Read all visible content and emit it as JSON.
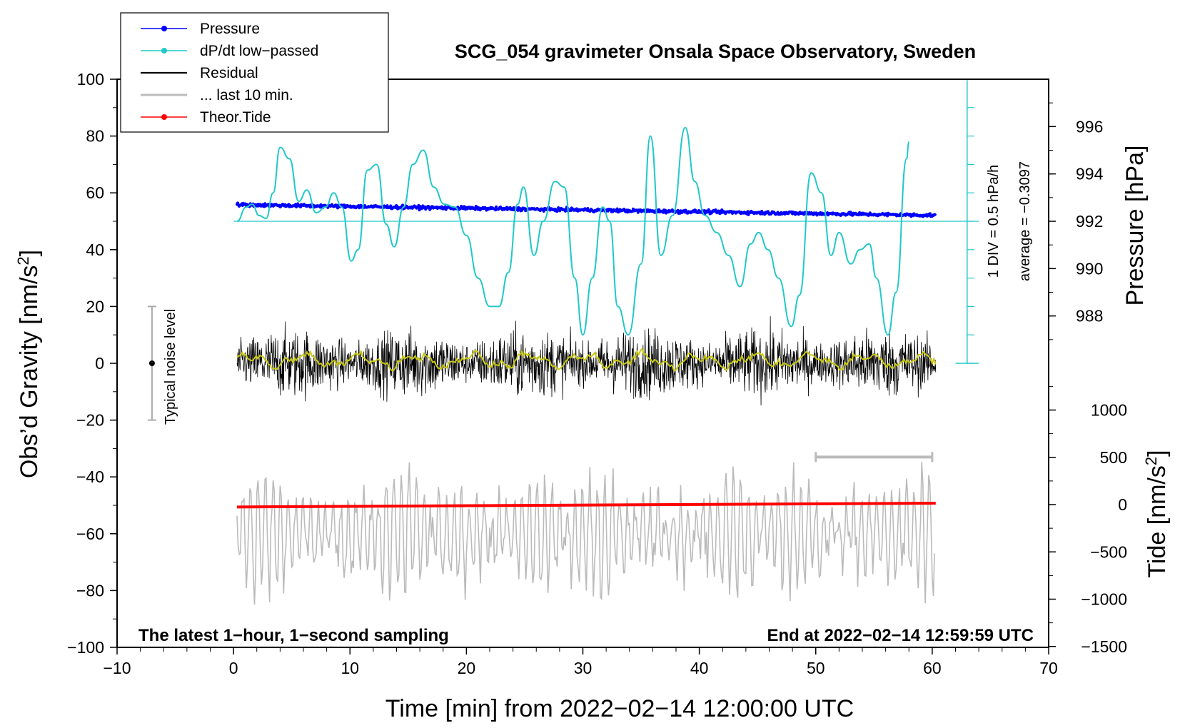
{
  "chart_data": {
    "type": "line",
    "title": "SCG_054 gravimeter Onsala Space Observatory, Sweden",
    "xlabel": "Time [min] from 2022−02−14 12:00:00 UTC",
    "ylabel_left": "Obs’d Gravity [nm/s",
    "ylabel_left_sup": "2",
    "ylabel_left_end": "]",
    "ylabel_right_top": "Pressure [hPa]",
    "ylabel_right_bottom": "Tide [nm/s",
    "ylabel_right_bottom_sup": "2",
    "ylabel_right_bottom_end": "]",
    "xlim": [
      -10,
      70
    ],
    "ylim": [
      -100,
      100
    ],
    "x_ticks": [
      {
        "v": -10,
        "t": "−10"
      },
      {
        "v": 0,
        "t": "0"
      },
      {
        "v": 10,
        "t": "10"
      },
      {
        "v": 20,
        "t": "20"
      },
      {
        "v": 30,
        "t": "30"
      },
      {
        "v": 40,
        "t": "40"
      },
      {
        "v": 50,
        "t": "50"
      },
      {
        "v": 60,
        "t": "60"
      },
      {
        "v": 70,
        "t": "70"
      }
    ],
    "y_ticks": [
      {
        "v": 100,
        "t": "100"
      },
      {
        "v": 80,
        "t": "80"
      },
      {
        "v": 60,
        "t": "60"
      },
      {
        "v": 40,
        "t": "40"
      },
      {
        "v": 20,
        "t": "20"
      },
      {
        "v": 0,
        "t": "0"
      },
      {
        "v": -20,
        "t": "−20"
      },
      {
        "v": -40,
        "t": "−40"
      },
      {
        "v": -60,
        "t": "−60"
      },
      {
        "v": -80,
        "t": "−80"
      },
      {
        "v": -100,
        "t": "−100"
      }
    ],
    "pressure_axis": {
      "ticks": [
        {
          "v": 996,
          "t": "996"
        },
        {
          "v": 994,
          "t": "994"
        },
        {
          "v": 992,
          "t": "992"
        },
        {
          "v": 990,
          "t": "990"
        },
        {
          "v": 988,
          "t": "988"
        }
      ],
      "note": "hPa scale maps 992 hPa to gravity 50, 2 hPa per 16.67 units"
    },
    "tide_axis": {
      "ticks": [
        {
          "v": 1000,
          "t": "1000"
        },
        {
          "v": 500,
          "t": "500"
        },
        {
          "v": 0,
          "t": "0"
        },
        {
          "v": -500,
          "t": "−500"
        },
        {
          "v": -1000,
          "t": "−1000"
        },
        {
          "v": -1500,
          "t": "−1500"
        }
      ]
    },
    "dpdt_scale_label": "1 DIV = 0.5 hPa/h",
    "average_label": "average = −0.3097",
    "typical_noise_label": "Typical noise level",
    "bottom_left_note": "The latest 1−hour, 1−second sampling",
    "bottom_right_note": "End at 2022−02−14 12:59:59 UTC",
    "legend": [
      {
        "label": "Pressure",
        "color": "#0000ff",
        "marker": true
      },
      {
        "label": "dP/dt low−passed",
        "color": "#22c8c8",
        "marker": true
      },
      {
        "label": "Residual",
        "color": "#000000",
        "marker": false
      },
      {
        "label": "... last 10 min.",
        "color": "#bbbbbb",
        "marker": false
      },
      {
        "label": "Theor.Tide",
        "color": "#ff0000",
        "marker": true
      }
    ],
    "series": [
      {
        "name": "Pressure",
        "color": "#0000ff",
        "unit": "hPa",
        "start": 992.7,
        "end": 992.25,
        "x_range": [
          0.3,
          60.3
        ]
      },
      {
        "name": "dP/dt low−passed",
        "color": "#22c8c8",
        "x": [
          0.3,
          1.1,
          1.6,
          2.2,
          2.8,
          3.4,
          4.0,
          4.8,
          5.6,
          6.3,
          7.1,
          7.9,
          8.6,
          9.3,
          10.1,
          10.7,
          11.5,
          12.3,
          13.1,
          13.8,
          14.6,
          15.4,
          16.3,
          17.2,
          18.1,
          19.0,
          20.0,
          21.0,
          22.0,
          22.8,
          23.6,
          24.4,
          24.9,
          25.8,
          26.6,
          27.6,
          28.4,
          29.3,
          30.0,
          30.8,
          31.7,
          32.3,
          33.0,
          33.9,
          35.0,
          35.8,
          36.7,
          37.7,
          38.8,
          39.6,
          40.5,
          41.5,
          42.5,
          43.5,
          44.4,
          45.1,
          45.9,
          46.8,
          47.9,
          48.6,
          49.6,
          50.5,
          51.3,
          52.0,
          53.0,
          53.8,
          54.6,
          55.2,
          56.2,
          56.9,
          57.8,
          58.0
        ],
        "y": [
          50,
          55,
          56,
          52,
          51,
          60,
          76,
          72,
          57,
          61,
          53,
          55,
          60,
          55,
          36,
          40,
          68,
          70,
          49,
          41,
          55,
          70,
          75,
          62,
          56,
          55,
          45,
          30,
          20,
          20,
          32,
          56,
          62,
          38,
          50,
          64,
          62,
          30,
          10,
          30,
          55,
          50,
          20,
          10,
          35,
          80,
          38,
          52,
          83,
          64,
          52,
          46,
          38,
          27,
          42,
          46,
          40,
          30,
          13,
          24,
          67,
          60,
          38,
          46,
          35,
          40,
          42,
          30,
          10,
          25,
          72,
          78
        ]
      },
      {
        "name": "Residual",
        "color": "#000000",
        "x_range": [
          0.3,
          60.3
        ],
        "amplitude": 30
      },
      {
        "name": "Residual smoothed",
        "color": "#c8c810",
        "x_range": [
          0.3,
          60.3
        ]
      },
      {
        "name": "... last 10 min.",
        "color": "#bbbbbb",
        "x_range": [
          0.3,
          60.3
        ],
        "offset": -60
      },
      {
        "name": "Theor.Tide",
        "color": "#ff0000",
        "unit": "nm/s2",
        "start": -25,
        "end": 15,
        "x_range": [
          0.3,
          60.3
        ]
      }
    ],
    "noise_bar": {
      "x": -7,
      "y_low": -20,
      "y_high": 20,
      "center": 0
    },
    "gray_span": {
      "x_start": 50,
      "x_end": 60,
      "y": -33
    }
  }
}
